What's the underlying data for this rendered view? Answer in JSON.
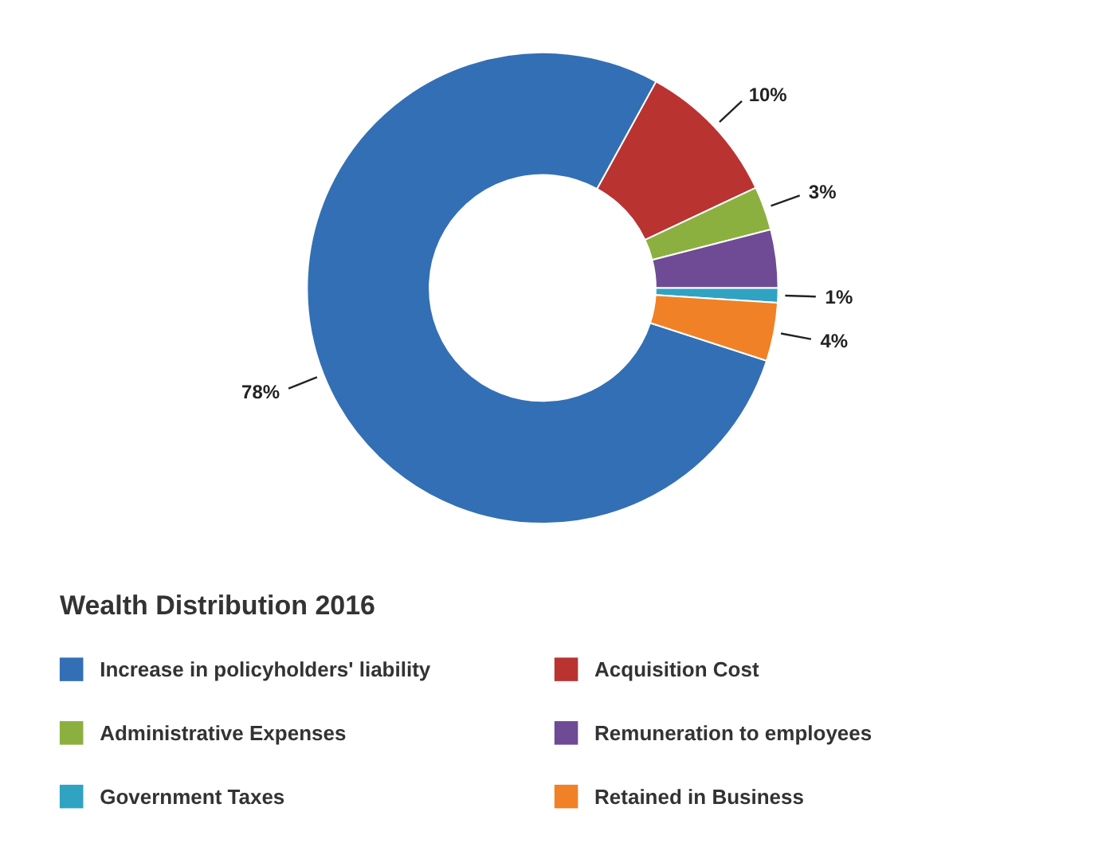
{
  "chart_data": {
    "type": "donut",
    "legend_title": "Wealth Distribution 2016",
    "categories": [
      "Increase in policyholders' liability",
      "Acquisition Cost",
      "Administrative Expenses",
      "Remuneration to employees",
      "Government Taxes",
      "Retained in Business"
    ],
    "values": [
      78,
      10,
      3,
      4,
      1,
      4
    ],
    "value_labels": [
      "78%",
      "10%",
      "3%",
      null,
      "1%",
      "4%"
    ],
    "colors": [
      "#336fb5",
      "#b93331",
      "#8cb03f",
      "#6e4b94",
      "#2fa3c1",
      "#f08126"
    ],
    "legend": "bottom"
  }
}
